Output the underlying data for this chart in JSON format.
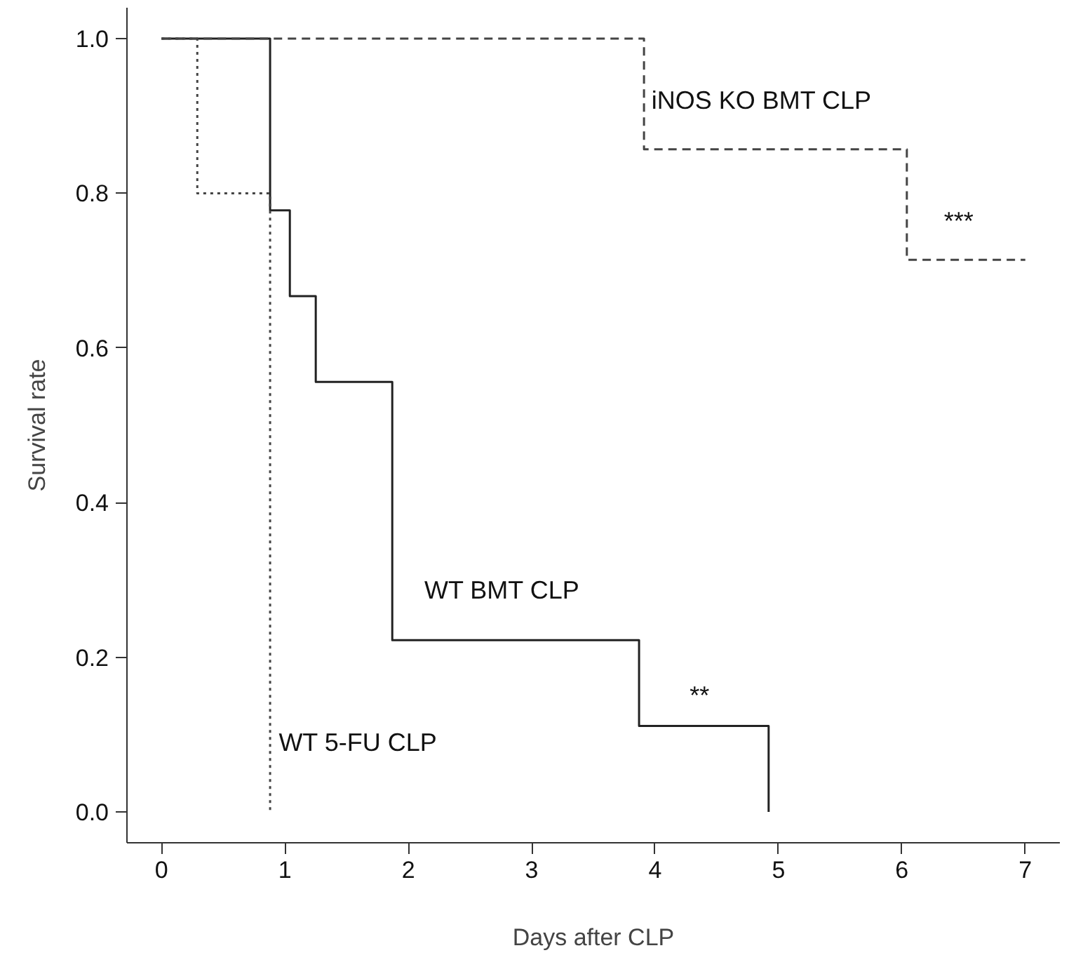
{
  "chart_data": {
    "type": "step",
    "xlabel": "Days after CLP",
    "ylabel": "Survival rate",
    "series": [
      {
        "name": "WT BMT CLP",
        "color": "#222222",
        "line_style": "solid",
        "x": [
          0,
          0.88,
          1.04,
          1.25,
          1.87,
          3.87,
          4.92
        ],
        "values": [
          1,
          0.778,
          0.667,
          0.556,
          0.222,
          0.111,
          0
        ]
      },
      {
        "name": "iNOS KO BMT CLP",
        "color": "#444444",
        "line_style": "dashed",
        "x": [
          0,
          3.91,
          6.04,
          7.0
        ],
        "values": [
          1,
          0.857,
          0.714,
          0.714
        ]
      },
      {
        "name": "WT 5-FU CLP",
        "color": "#444444",
        "line_style": "dotted",
        "x": [
          0,
          0.29,
          0.88
        ],
        "values": [
          1,
          0.8,
          0
        ]
      }
    ],
    "annotations": [
      "**",
      "***"
    ],
    "xlim": [
      -0.28,
      7.28
    ],
    "ylim": [
      -0.04,
      1.04
    ],
    "xticks": [
      0,
      1,
      2,
      3,
      4,
      5,
      6,
      7
    ],
    "yticks": [
      {
        "value": 0,
        "label": "0.0"
      },
      {
        "value": 0.2,
        "label": "0.2"
      },
      {
        "value": 0.4,
        "label": "0.4"
      },
      {
        "value": 0.6,
        "label": "0.6"
      },
      {
        "value": 0.8,
        "label": "0.8"
      },
      {
        "value": 1,
        "label": "1.0"
      }
    ],
    "grid": false
  }
}
